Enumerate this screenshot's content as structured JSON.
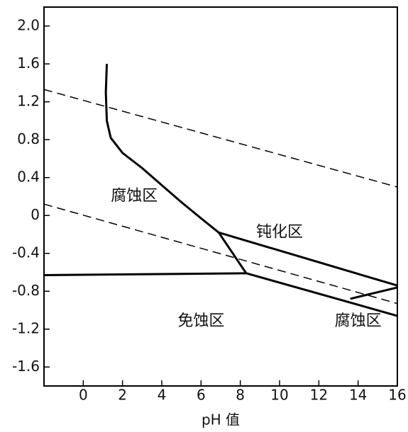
{
  "chart_data": {
    "type": "line",
    "xlabel": "pH 值",
    "xlim": [
      -2,
      16
    ],
    "ylim": [
      -1.8,
      2.2
    ],
    "xticks": [
      0,
      2,
      4,
      6,
      8,
      10,
      12,
      14,
      16
    ],
    "yticks": [
      {
        "value": 2,
        "label": "2.0"
      },
      1.6,
      1.2,
      0.8,
      0.4,
      0,
      -0.4,
      -0.8,
      -1.2,
      -1.6
    ],
    "series": [
      {
        "color": "#000000",
        "dashed": true,
        "x": [
          -2,
          16
        ],
        "values": [
          1.33,
          0.3
        ]
      },
      {
        "color": "#000000",
        "dashed": true,
        "x": [
          -2,
          16
        ],
        "values": [
          0.12,
          -0.93
        ]
      },
      {
        "color": "#000000",
        "dashed": false,
        "x": [
          -2,
          8.3
        ],
        "values": [
          -0.63,
          -0.61
        ]
      },
      {
        "color": "#000000",
        "dashed": false,
        "x": [
          1.2,
          1.15,
          1.2,
          1.4,
          2,
          3,
          4,
          5,
          6,
          6.9
        ],
        "values": [
          1.6,
          1.3,
          1.0,
          0.82,
          0.66,
          0.5,
          0.32,
          0.14,
          -0.03,
          -0.18
        ]
      },
      {
        "color": "#000000",
        "dashed": false,
        "x": [
          6.9,
          8.3
        ],
        "values": [
          -0.18,
          -0.61
        ]
      },
      {
        "color": "#000000",
        "dashed": false,
        "x": [
          6.9,
          16
        ],
        "values": [
          -0.18,
          -0.74
        ]
      },
      {
        "color": "#000000",
        "dashed": false,
        "x": [
          8.3,
          16
        ],
        "values": [
          -0.61,
          -1.06
        ]
      },
      {
        "color": "#000000",
        "dashed": false,
        "x": [
          13.6,
          16
        ],
        "values": [
          -0.88,
          -0.76
        ]
      }
    ],
    "annotations": [
      {
        "text": "腐蚀区",
        "x": 2.6,
        "y": 0.2
      },
      {
        "text": "钝化区",
        "x": 10,
        "y": -0.18
      },
      {
        "text": "免蚀区",
        "x": 6,
        "y": -1.12
      },
      {
        "text": "腐蚀区",
        "x": 14,
        "y": -1.12
      }
    ]
  }
}
